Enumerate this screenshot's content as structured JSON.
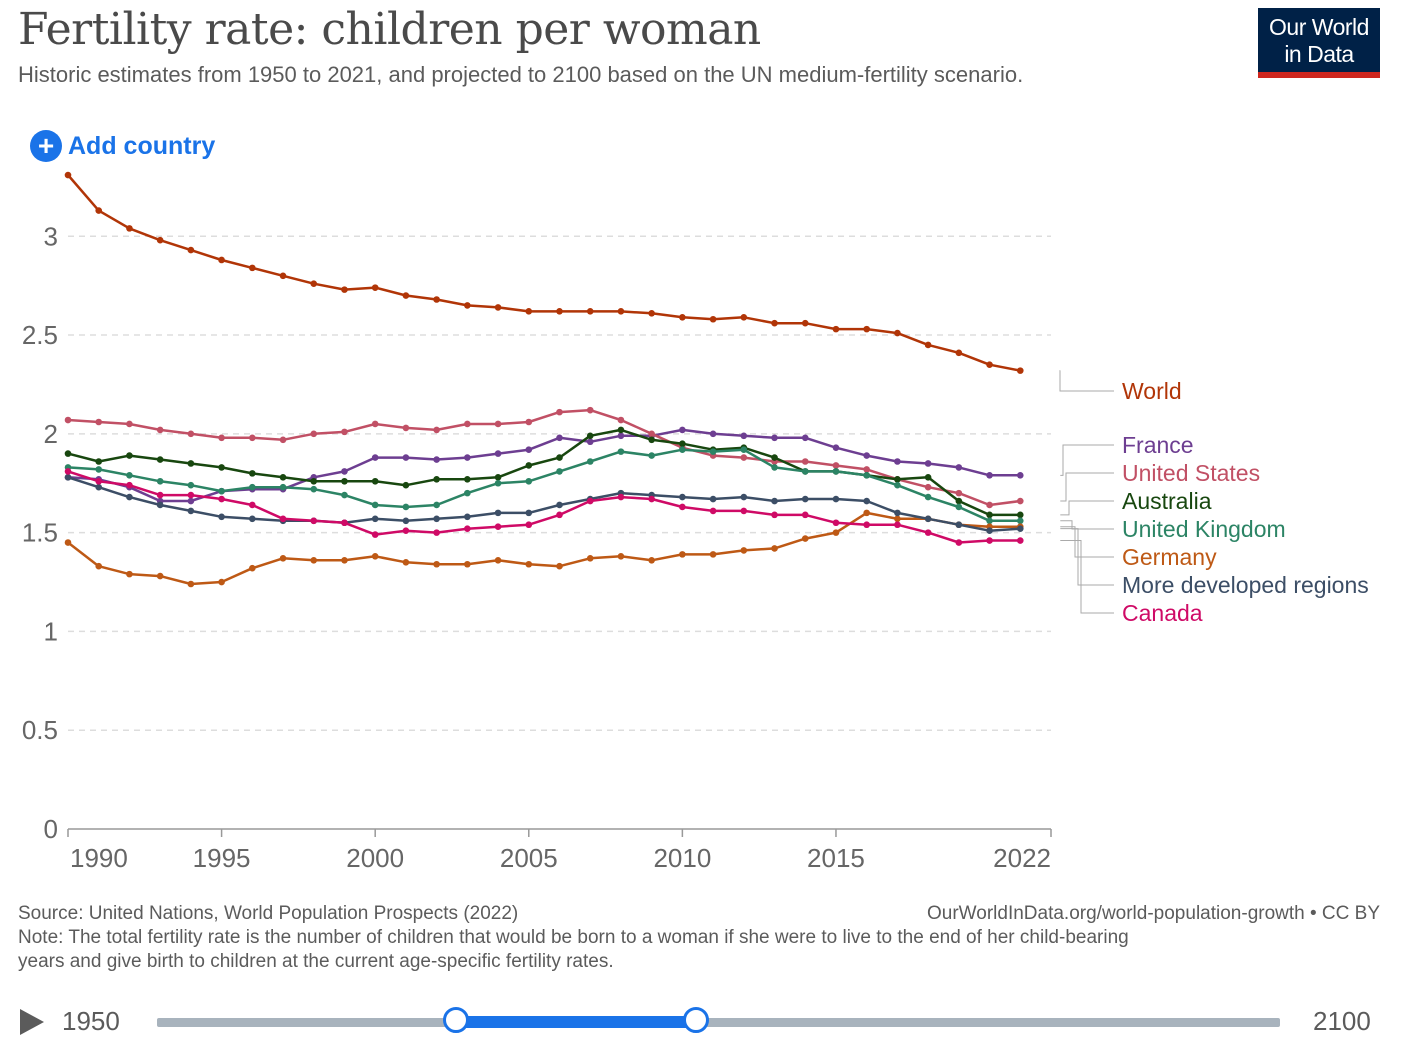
{
  "header": {
    "title": "Fertility rate: children per woman",
    "subtitle": "Historic estimates from 1950 to 2021, and projected to 2100 based on the UN medium-fertility scenario.",
    "logo_line1": "Our World",
    "logo_line2": "in Data"
  },
  "controls": {
    "add_country_label": "Add country"
  },
  "footer": {
    "source": "Source: United Nations, World Population Prospects (2022)",
    "url_license": "OurWorldInData.org/world-population-growth • CC BY",
    "note_line1": "Note: The total fertility rate is the number of children that would be born to a woman if she were to live to the end of her child-bearing",
    "note_line2": "years and give birth to children at the current age-specific fertility rates."
  },
  "timeline": {
    "start_label": "1950",
    "end_label": "2100",
    "selected_start": 1990,
    "selected_end": 2022
  },
  "chart_data": {
    "type": "line",
    "x": [
      1990,
      1991,
      1992,
      1993,
      1994,
      1995,
      1996,
      1997,
      1998,
      1999,
      2000,
      2001,
      2002,
      2003,
      2004,
      2005,
      2006,
      2007,
      2008,
      2009,
      2010,
      2011,
      2012,
      2013,
      2014,
      2015,
      2016,
      2017,
      2018,
      2019,
      2020,
      2021
    ],
    "xlim": [
      1990,
      2022
    ],
    "ylim": [
      0,
      3.3
    ],
    "y_ticks": [
      0,
      0.5,
      1,
      1.5,
      2,
      2.5,
      3
    ],
    "y_tick_labels": [
      "0",
      "0.5",
      "1",
      "1.5",
      "2",
      "2.5",
      "3"
    ],
    "x_ticks": [
      1990,
      1995,
      2000,
      2005,
      2010,
      2015,
      2022
    ],
    "x_tick_labels": [
      "1990",
      "1995",
      "2000",
      "2005",
      "2010",
      "2015",
      "2022"
    ],
    "grid": "horizontal dashed",
    "legend": "right, labels at line ends",
    "series": [
      {
        "name": "World",
        "color": "#b13507",
        "values": [
          3.31,
          3.13,
          3.04,
          2.98,
          2.93,
          2.88,
          2.84,
          2.8,
          2.76,
          2.73,
          2.74,
          2.7,
          2.68,
          2.65,
          2.64,
          2.62,
          2.62,
          2.62,
          2.62,
          2.61,
          2.59,
          2.58,
          2.59,
          2.56,
          2.56,
          2.53,
          2.53,
          2.51,
          2.45,
          2.41,
          2.35,
          2.32
        ]
      },
      {
        "name": "France",
        "color": "#6d3e91",
        "values": [
          1.78,
          1.77,
          1.73,
          1.66,
          1.66,
          1.71,
          1.72,
          1.72,
          1.78,
          1.81,
          1.88,
          1.88,
          1.87,
          1.88,
          1.9,
          1.92,
          1.98,
          1.96,
          1.99,
          1.99,
          2.02,
          2.0,
          1.99,
          1.98,
          1.98,
          1.93,
          1.89,
          1.86,
          1.85,
          1.83,
          1.79,
          1.79
        ]
      },
      {
        "name": "United States",
        "color": "#c15065",
        "values": [
          2.07,
          2.06,
          2.05,
          2.02,
          2.0,
          1.98,
          1.98,
          1.97,
          2.0,
          2.01,
          2.05,
          2.03,
          2.02,
          2.05,
          2.05,
          2.06,
          2.11,
          2.12,
          2.07,
          2.0,
          1.93,
          1.89,
          1.88,
          1.86,
          1.86,
          1.84,
          1.82,
          1.77,
          1.73,
          1.7,
          1.64,
          1.66
        ]
      },
      {
        "name": "Australia",
        "color": "#18470f",
        "values": [
          1.9,
          1.86,
          1.89,
          1.87,
          1.85,
          1.83,
          1.8,
          1.78,
          1.76,
          1.76,
          1.76,
          1.74,
          1.77,
          1.77,
          1.78,
          1.84,
          1.88,
          1.99,
          2.02,
          1.97,
          1.95,
          1.92,
          1.93,
          1.88,
          1.81,
          1.81,
          1.79,
          1.77,
          1.78,
          1.66,
          1.59,
          1.59
        ]
      },
      {
        "name": "United Kingdom",
        "color": "#2c8465",
        "values": [
          1.83,
          1.82,
          1.79,
          1.76,
          1.74,
          1.71,
          1.73,
          1.73,
          1.72,
          1.69,
          1.64,
          1.63,
          1.64,
          1.7,
          1.75,
          1.76,
          1.81,
          1.86,
          1.91,
          1.89,
          1.92,
          1.91,
          1.92,
          1.83,
          1.81,
          1.81,
          1.79,
          1.74,
          1.68,
          1.63,
          1.56,
          1.56
        ]
      },
      {
        "name": "Germany",
        "color": "#be5915",
        "values": [
          1.45,
          1.33,
          1.29,
          1.28,
          1.24,
          1.25,
          1.32,
          1.37,
          1.36,
          1.36,
          1.38,
          1.35,
          1.34,
          1.34,
          1.36,
          1.34,
          1.33,
          1.37,
          1.38,
          1.36,
          1.39,
          1.39,
          1.41,
          1.42,
          1.47,
          1.5,
          1.6,
          1.57,
          1.57,
          1.54,
          1.53,
          1.53
        ]
      },
      {
        "name": "More developed regions",
        "color": "#3c4e66",
        "values": [
          1.78,
          1.73,
          1.68,
          1.64,
          1.61,
          1.58,
          1.57,
          1.56,
          1.56,
          1.55,
          1.57,
          1.56,
          1.57,
          1.58,
          1.6,
          1.6,
          1.64,
          1.67,
          1.7,
          1.69,
          1.68,
          1.67,
          1.68,
          1.66,
          1.67,
          1.67,
          1.66,
          1.6,
          1.57,
          1.54,
          1.51,
          1.52
        ]
      },
      {
        "name": "Canada",
        "color": "#cf0a66",
        "values": [
          1.81,
          1.76,
          1.74,
          1.69,
          1.69,
          1.67,
          1.64,
          1.57,
          1.56,
          1.55,
          1.49,
          1.51,
          1.5,
          1.52,
          1.53,
          1.54,
          1.59,
          1.66,
          1.68,
          1.67,
          1.63,
          1.61,
          1.61,
          1.59,
          1.59,
          1.55,
          1.54,
          1.54,
          1.5,
          1.45,
          1.46,
          1.46
        ]
      }
    ]
  }
}
